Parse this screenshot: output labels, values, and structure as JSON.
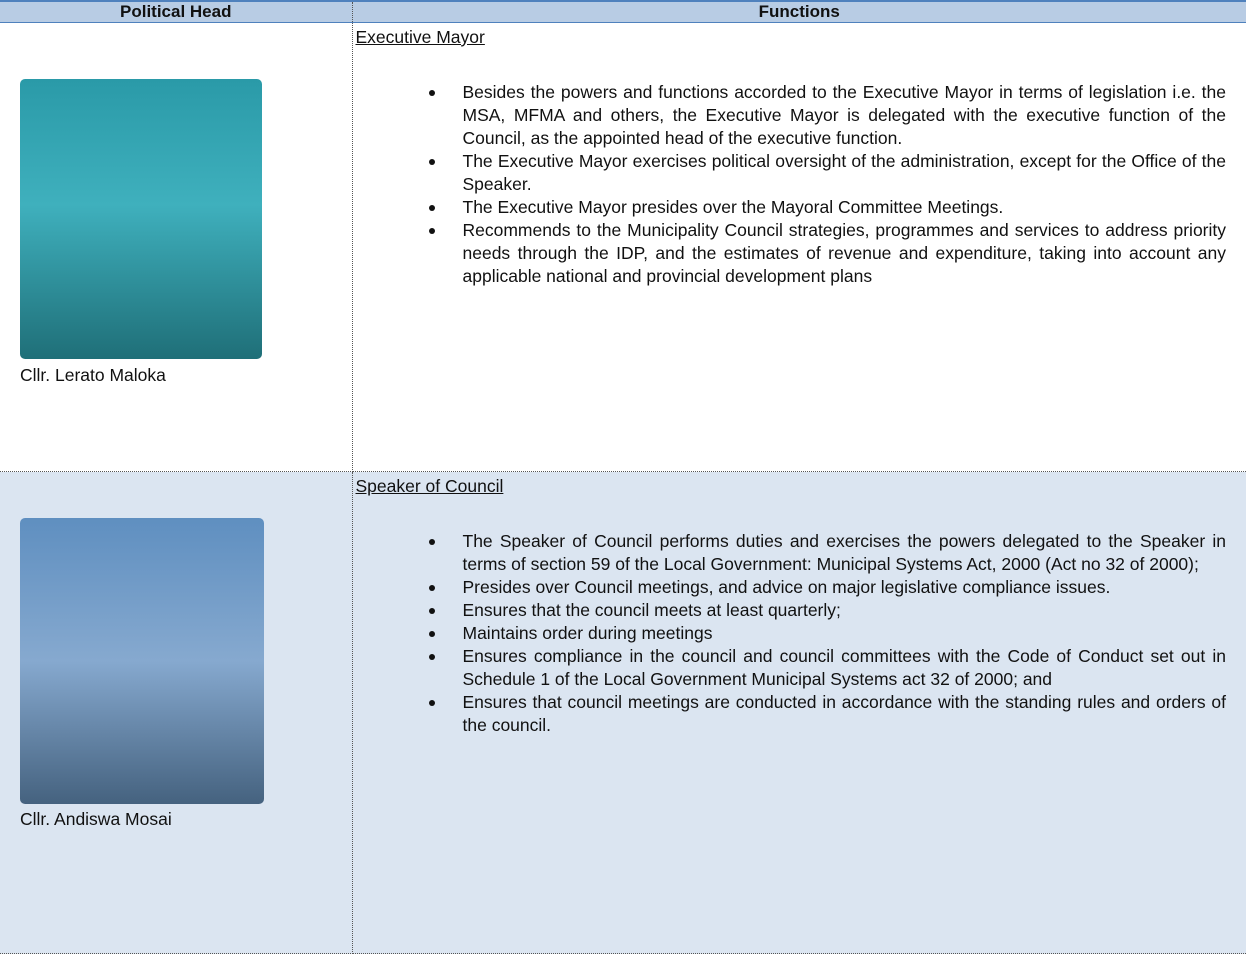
{
  "table": {
    "headers": [
      "Political Head",
      "Functions"
    ],
    "rows": [
      {
        "name": "Cllr. Lerato Maloka",
        "role": "Executive Mayor",
        "functions": [
          "Besides the powers and functions accorded to the Executive Mayor in terms of legislation i.e. the MSA, MFMA and others, the Executive Mayor is delegated with the executive function of the Council, as the appointed head of the executive function.",
          "The Executive Mayor exercises political oversight of the administration, except for the Office of the Speaker.",
          "The Executive Mayor presides over the Mayoral Committee Meetings.",
          "Recommends to the Municipality Council strategies, programmes and services to address priority needs through the IDP, and the estimates of revenue and expenditure, taking into account any applicable national and provincial development plans"
        ]
      },
      {
        "name": "Cllr. Andiswa Mosai",
        "role": "Speaker of Council",
        "functions": [
          "The Speaker of Council performs duties and exercises the powers delegated to the Speaker in terms of section 59 of the Local Government: Municipal Systems Act, 2000 (Act no 32 of 2000);",
          "Presides over Council meetings, and advice on major legislative compliance issues.",
          "Ensures that the council meets at least quarterly;",
          "Maintains order during meetings",
          "Ensures compliance in the council and council committees with the Code of Conduct set out in Schedule 1 of the Local Government Municipal Systems act 32 of 2000; and",
          "Ensures that council meetings are conducted in accordance with the standing rules and orders of the council."
        ]
      }
    ]
  }
}
